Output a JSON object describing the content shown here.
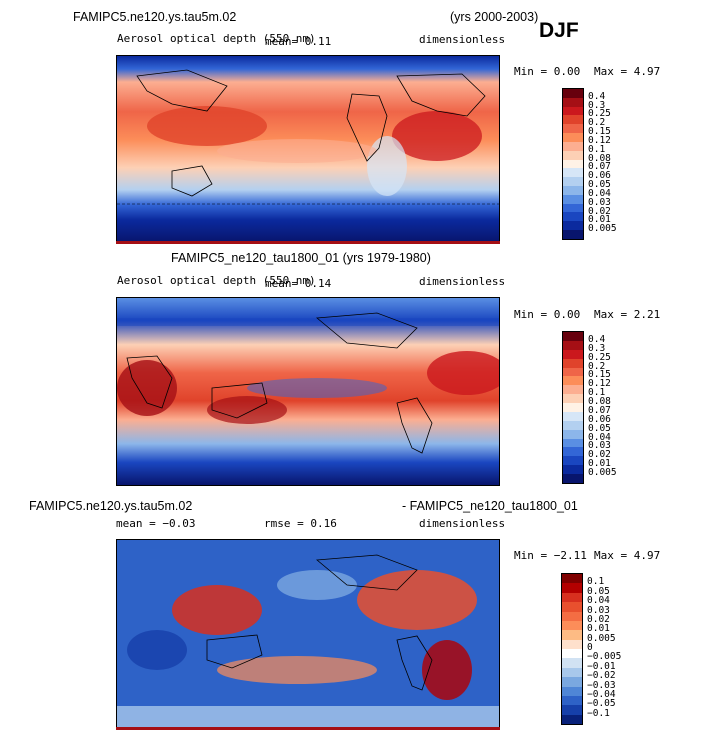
{
  "season_label": "DJF",
  "chart_data": [
    {
      "type": "heatmap",
      "title": "FAMIPC5.ne120.ys.tau5m.02",
      "years": "(yrs 2000-2003)",
      "variable": "Aerosol optical depth (550 nm)",
      "mean_text": "mean=   0.11",
      "units": "dimensionless",
      "min_text": "Min =   0.00",
      "max_text": "Max =   4.97",
      "levels": [
        "0.4",
        "0.3",
        "0.25",
        "0.2",
        "0.15",
        "0.12",
        "0.1",
        "0.08",
        "0.07",
        "0.06",
        "0.05",
        "0.04",
        "0.03",
        "0.02",
        "0.01",
        "0.005"
      ],
      "colors": [
        "#67000d",
        "#a50f15",
        "#cb181d",
        "#e0432b",
        "#ef6548",
        "#fc8d59",
        "#fcae91",
        "#fdd0b5",
        "#fff2e6",
        "#d6e6f7",
        "#b3d0f0",
        "#8cb6ea",
        "#5a8fe3",
        "#3366d6",
        "#1a46c0",
        "#0b2a9e",
        "#08156d"
      ]
    },
    {
      "type": "heatmap",
      "title": "FAMIPC5_ne120_tau1800_01 (yrs 1979-1980)",
      "variable": "Aerosol optical depth (550 nm)",
      "mean_text": "mean=   0.14",
      "units": "dimensionless",
      "min_text": "Min =   0.00",
      "max_text": "Max =   2.21",
      "levels": [
        "0.4",
        "0.3",
        "0.25",
        "0.2",
        "0.15",
        "0.12",
        "0.1",
        "0.08",
        "0.07",
        "0.06",
        "0.05",
        "0.04",
        "0.03",
        "0.02",
        "0.01",
        "0.005"
      ],
      "colors": [
        "#67000d",
        "#a50f15",
        "#cb181d",
        "#e0432b",
        "#ef6548",
        "#fc8d59",
        "#fcae91",
        "#fdd0b5",
        "#fff2e6",
        "#d6e6f7",
        "#b3d0f0",
        "#8cb6ea",
        "#5a8fe3",
        "#3366d6",
        "#1a46c0",
        "#0b2a9e",
        "#08156d"
      ]
    },
    {
      "type": "heatmap",
      "title": "FAMIPC5.ne120.ys.tau5m.02",
      "title_right": "- FAMIPC5_ne120_tau1800_01",
      "mean_text": "mean =  −0.03",
      "rmse_text": "rmse =   0.16",
      "units": "dimensionless",
      "min_text": "Min =  −2.11",
      "max_text": "Max =   4.97",
      "levels": [
        "0.1",
        "0.05",
        "0.04",
        "0.03",
        "0.02",
        "0.01",
        "0.005",
        "0",
        "−0.005",
        "−0.01",
        "−0.02",
        "−0.03",
        "−0.04",
        "−0.05",
        "−0.1"
      ],
      "colors": [
        "#7f0000",
        "#b30000",
        "#d7301f",
        "#e8502e",
        "#f46d43",
        "#fc8d59",
        "#fdbb84",
        "#fee0cc",
        "#ffffff",
        "#d1e2f3",
        "#a8c8eb",
        "#7aa8e0",
        "#4f86d6",
        "#2e62c7",
        "#1640aa",
        "#08217a"
      ]
    }
  ]
}
